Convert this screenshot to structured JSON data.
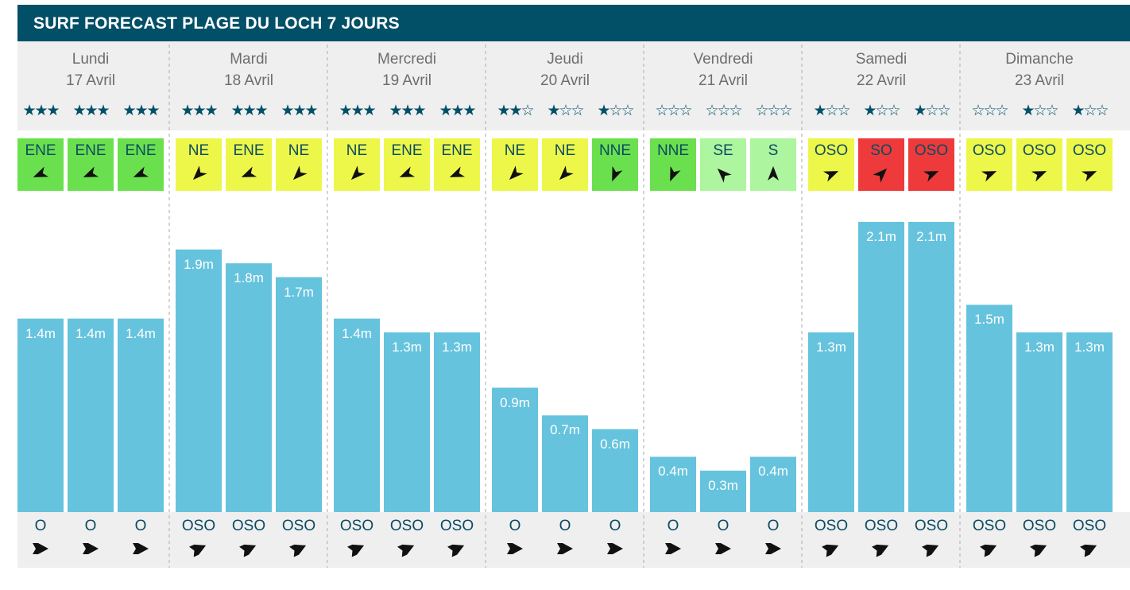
{
  "title": "SURF FORECAST PLAGE DU LOCH 7 JOURS",
  "colors": {
    "header": "#025068",
    "bar": "#66c3dd",
    "band_bg": "#efefef",
    "good_wind": "#6be04e",
    "light_wind": "#adf59e",
    "moderate_wind": "#edf74a",
    "strong_wind": "#ee3a3a"
  },
  "chart_data": {
    "type": "bar",
    "title": "SURF FORECAST PLAGE DU LOCH 7 JOURS",
    "xlabel": "",
    "ylabel": "",
    "ylim": [
      0,
      2.1
    ],
    "grid": false,
    "days": [
      {
        "name": "Lundi",
        "date": "17 Avril"
      },
      {
        "name": "Mardi",
        "date": "18 Avril"
      },
      {
        "name": "Mercredi",
        "date": "19 Avril"
      },
      {
        "name": "Jeudi",
        "date": "20 Avril"
      },
      {
        "name": "Vendredi",
        "date": "21 Avril"
      },
      {
        "name": "Samedi",
        "date": "22 Avril"
      },
      {
        "name": "Dimanche",
        "date": "23 Avril"
      }
    ],
    "periods_per_day": 3,
    "wave_height_m": [
      1.4,
      1.4,
      1.4,
      1.9,
      1.8,
      1.7,
      1.4,
      1.3,
      1.3,
      0.9,
      0.7,
      0.6,
      0.4,
      0.3,
      0.4,
      1.3,
      2.1,
      2.1,
      1.5,
      1.3,
      1.3
    ],
    "wave_labels": [
      "1.4m",
      "1.4m",
      "1.4m",
      "1.9m",
      "1.8m",
      "1.7m",
      "1.4m",
      "1.3m",
      "1.3m",
      "0.9m",
      "0.7m",
      "0.6m",
      "0.4m",
      "0.3m",
      "0.4m",
      "1.3m",
      "2.1m",
      "2.1m",
      "1.5m",
      "1.3m",
      "1.3m"
    ],
    "stars": [
      3,
      3,
      3,
      3,
      3,
      3,
      3,
      3,
      3,
      2,
      1,
      1,
      0,
      0,
      0,
      1,
      1,
      1,
      0,
      1,
      1
    ],
    "max_stars": 3,
    "wind_direction": [
      "ENE",
      "ENE",
      "ENE",
      "NE",
      "ENE",
      "NE",
      "NE",
      "ENE",
      "ENE",
      "NE",
      "NE",
      "NNE",
      "NNE",
      "SE",
      "S",
      "OSO",
      "SO",
      "OSO",
      "OSO",
      "OSO",
      "OSO"
    ],
    "wind_color": [
      "good",
      "good",
      "good",
      "moderate",
      "moderate",
      "moderate",
      "moderate",
      "moderate",
      "moderate",
      "moderate",
      "moderate",
      "good",
      "good",
      "light",
      "light",
      "moderate",
      "strong",
      "strong",
      "moderate",
      "moderate",
      "moderate"
    ],
    "swell_direction": [
      "O",
      "O",
      "O",
      "OSO",
      "OSO",
      "OSO",
      "OSO",
      "OSO",
      "OSO",
      "O",
      "O",
      "O",
      "O",
      "O",
      "O",
      "OSO",
      "OSO",
      "OSO",
      "OSO",
      "OSO",
      "OSO"
    ]
  }
}
